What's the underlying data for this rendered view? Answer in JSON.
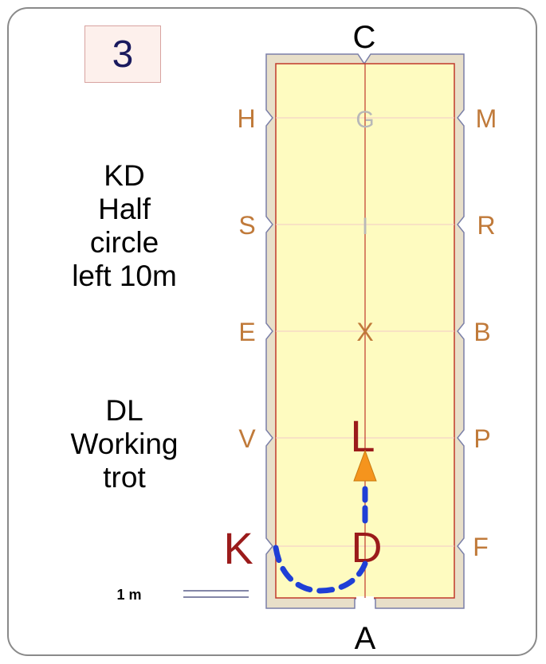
{
  "movement_number": "3",
  "instructions": [
    {
      "lines": [
        "KD",
        "Half",
        "circle",
        "left 10m"
      ]
    },
    {
      "lines": [
        "DL",
        "Working",
        "trot"
      ]
    }
  ],
  "arena": {
    "end_letters": {
      "top": "C",
      "bottom": "A"
    },
    "left_letters": [
      "H",
      "S",
      "E",
      "V",
      "K"
    ],
    "right_letters": [
      "M",
      "R",
      "B",
      "P",
      "F"
    ],
    "centerline_letters": [
      "G",
      "I",
      "X",
      "L",
      "D"
    ]
  },
  "scale_label": "1 m",
  "colors": {
    "arena_fill": "#fefbc0",
    "arena_border": "#e8dfc9",
    "inner_line": "#c0392b",
    "letter_side": "#c07a3a",
    "letter_active": "#9b1b1b",
    "centerline_letter_faint": "#b8b8b8",
    "path": "#1f3fd6",
    "arrow": "#f5941d"
  }
}
